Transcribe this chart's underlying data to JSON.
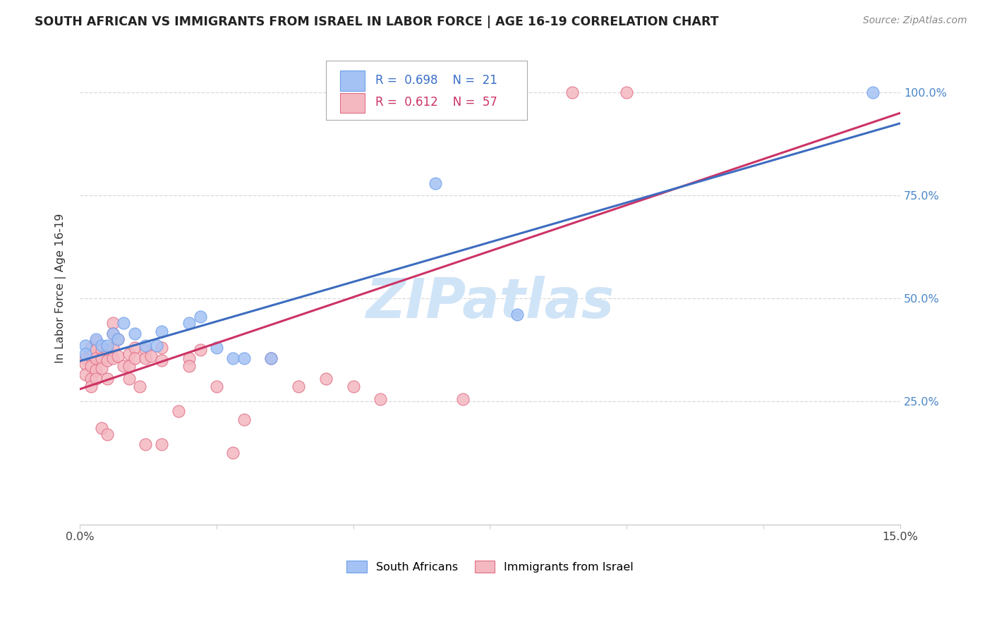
{
  "title": "SOUTH AFRICAN VS IMMIGRANTS FROM ISRAEL IN LABOR FORCE | AGE 16-19 CORRELATION CHART",
  "source": "Source: ZipAtlas.com",
  "ylabel": "In Labor Force | Age 16-19",
  "xlim": [
    0.0,
    0.15
  ],
  "ylim": [
    -0.05,
    1.1
  ],
  "ytick_values": [
    0.25,
    0.5,
    0.75,
    1.0
  ],
  "ytick_labels": [
    "25.0%",
    "50.0%",
    "75.0%",
    "100.0%"
  ],
  "blue_R": "0.698",
  "blue_N": "21",
  "pink_R": "0.612",
  "pink_N": "57",
  "blue_color": "#a4c2f4",
  "pink_color": "#f4b8c1",
  "blue_edge_color": "#6d9eeb",
  "pink_edge_color": "#e06c84",
  "blue_line_color": "#3d6cc0",
  "pink_line_color": "#cc3366",
  "watermark_color": "#d0e4f7",
  "legend_label_blue": "South Africans",
  "legend_label_pink": "Immigrants from Israel",
  "blue_points": [
    [
      0.001,
      0.385
    ],
    [
      0.001,
      0.365
    ],
    [
      0.003,
      0.4
    ],
    [
      0.004,
      0.385
    ],
    [
      0.005,
      0.385
    ],
    [
      0.006,
      0.415
    ],
    [
      0.007,
      0.4
    ],
    [
      0.008,
      0.44
    ],
    [
      0.01,
      0.415
    ],
    [
      0.012,
      0.385
    ],
    [
      0.014,
      0.385
    ],
    [
      0.015,
      0.42
    ],
    [
      0.02,
      0.44
    ],
    [
      0.022,
      0.455
    ],
    [
      0.025,
      0.38
    ],
    [
      0.028,
      0.355
    ],
    [
      0.03,
      0.355
    ],
    [
      0.035,
      0.355
    ],
    [
      0.065,
      0.78
    ],
    [
      0.08,
      0.46
    ],
    [
      0.145,
      1.0
    ]
  ],
  "pink_points": [
    [
      0.001,
      0.355
    ],
    [
      0.001,
      0.34
    ],
    [
      0.001,
      0.315
    ],
    [
      0.002,
      0.38
    ],
    [
      0.002,
      0.36
    ],
    [
      0.002,
      0.335
    ],
    [
      0.002,
      0.305
    ],
    [
      0.002,
      0.285
    ],
    [
      0.003,
      0.395
    ],
    [
      0.003,
      0.375
    ],
    [
      0.003,
      0.355
    ],
    [
      0.003,
      0.325
    ],
    [
      0.003,
      0.305
    ],
    [
      0.004,
      0.375
    ],
    [
      0.004,
      0.355
    ],
    [
      0.004,
      0.33
    ],
    [
      0.004,
      0.185
    ],
    [
      0.005,
      0.375
    ],
    [
      0.005,
      0.35
    ],
    [
      0.005,
      0.305
    ],
    [
      0.005,
      0.17
    ],
    [
      0.006,
      0.44
    ],
    [
      0.006,
      0.415
    ],
    [
      0.006,
      0.38
    ],
    [
      0.006,
      0.355
    ],
    [
      0.007,
      0.4
    ],
    [
      0.007,
      0.36
    ],
    [
      0.008,
      0.335
    ],
    [
      0.009,
      0.365
    ],
    [
      0.009,
      0.335
    ],
    [
      0.009,
      0.305
    ],
    [
      0.01,
      0.38
    ],
    [
      0.01,
      0.355
    ],
    [
      0.011,
      0.285
    ],
    [
      0.012,
      0.375
    ],
    [
      0.012,
      0.355
    ],
    [
      0.012,
      0.145
    ],
    [
      0.013,
      0.36
    ],
    [
      0.015,
      0.38
    ],
    [
      0.015,
      0.35
    ],
    [
      0.015,
      0.145
    ],
    [
      0.018,
      0.225
    ],
    [
      0.02,
      0.355
    ],
    [
      0.02,
      0.335
    ],
    [
      0.022,
      0.375
    ],
    [
      0.025,
      0.285
    ],
    [
      0.028,
      0.125
    ],
    [
      0.03,
      0.205
    ],
    [
      0.035,
      0.355
    ],
    [
      0.04,
      0.285
    ],
    [
      0.045,
      0.305
    ],
    [
      0.05,
      0.285
    ],
    [
      0.055,
      0.255
    ],
    [
      0.07,
      0.255
    ],
    [
      0.08,
      1.0
    ],
    [
      0.09,
      1.0
    ],
    [
      0.1,
      1.0
    ]
  ],
  "grid_color": "#d9d9d9",
  "spine_color": "#cccccc"
}
